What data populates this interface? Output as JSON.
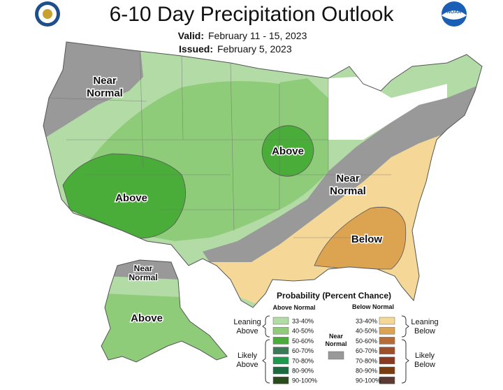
{
  "title": "6-10 Day Precipitation Outlook",
  "valid_label": "Valid:",
  "valid_value": "February 11 - 15, 2023",
  "issued_label": "Issued:",
  "issued_value": "February 5, 2023",
  "logos": {
    "left": "NWS seal",
    "right": "NOAA"
  },
  "colors": {
    "near_normal": "#999999",
    "above_33_40": "#b3dba6",
    "above_40_50": "#8fcc7a",
    "above_50_60": "#4aad39",
    "below_33_40": "#f5d898",
    "below_40_50": "#dca451",
    "background_outside": "#ffffff"
  },
  "map_labels": {
    "nw": "Near\nNormal",
    "sw_above": "Above",
    "mw_above": "Above",
    "east_near": "Near\nNormal",
    "se_below": "Below",
    "ak_near": "Near\nNormal",
    "ak_above": "Above"
  },
  "legend": {
    "title": "Probability (Percent Chance)",
    "above_header": "Above Normal",
    "below_header": "Below Normal",
    "near_label": "Near\nNormal",
    "leaning_above": "Leaning\nAbove",
    "likely_above": "Likely\nAbove",
    "leaning_below": "Leaning\nBelow",
    "likely_below": "Likely\nBelow",
    "above_rows": [
      {
        "range": "33-40%",
        "color": "#b3dba6"
      },
      {
        "range": "40-50%",
        "color": "#8fcc7a"
      },
      {
        "range": "50-60%",
        "color": "#4aad39"
      },
      {
        "range": "60-70%",
        "color": "#3b7a57"
      },
      {
        "range": "70-80%",
        "color": "#1e9a4c"
      },
      {
        "range": "80-90%",
        "color": "#1c6b40"
      },
      {
        "range": "90-100%",
        "color": "#2b4a1d"
      }
    ],
    "below_rows": [
      {
        "range": "33-40%",
        "color": "#f5d898"
      },
      {
        "range": "40-50%",
        "color": "#dca451"
      },
      {
        "range": "50-60%",
        "color": "#b86c35"
      },
      {
        "range": "60-70%",
        "color": "#9e4f2a"
      },
      {
        "range": "70-80%",
        "color": "#8a3a20"
      },
      {
        "range": "80-90%",
        "color": "#7a3d0f"
      },
      {
        "range": "90-100%",
        "color": "#5a3a33"
      }
    ],
    "near_color": "#999999"
  }
}
